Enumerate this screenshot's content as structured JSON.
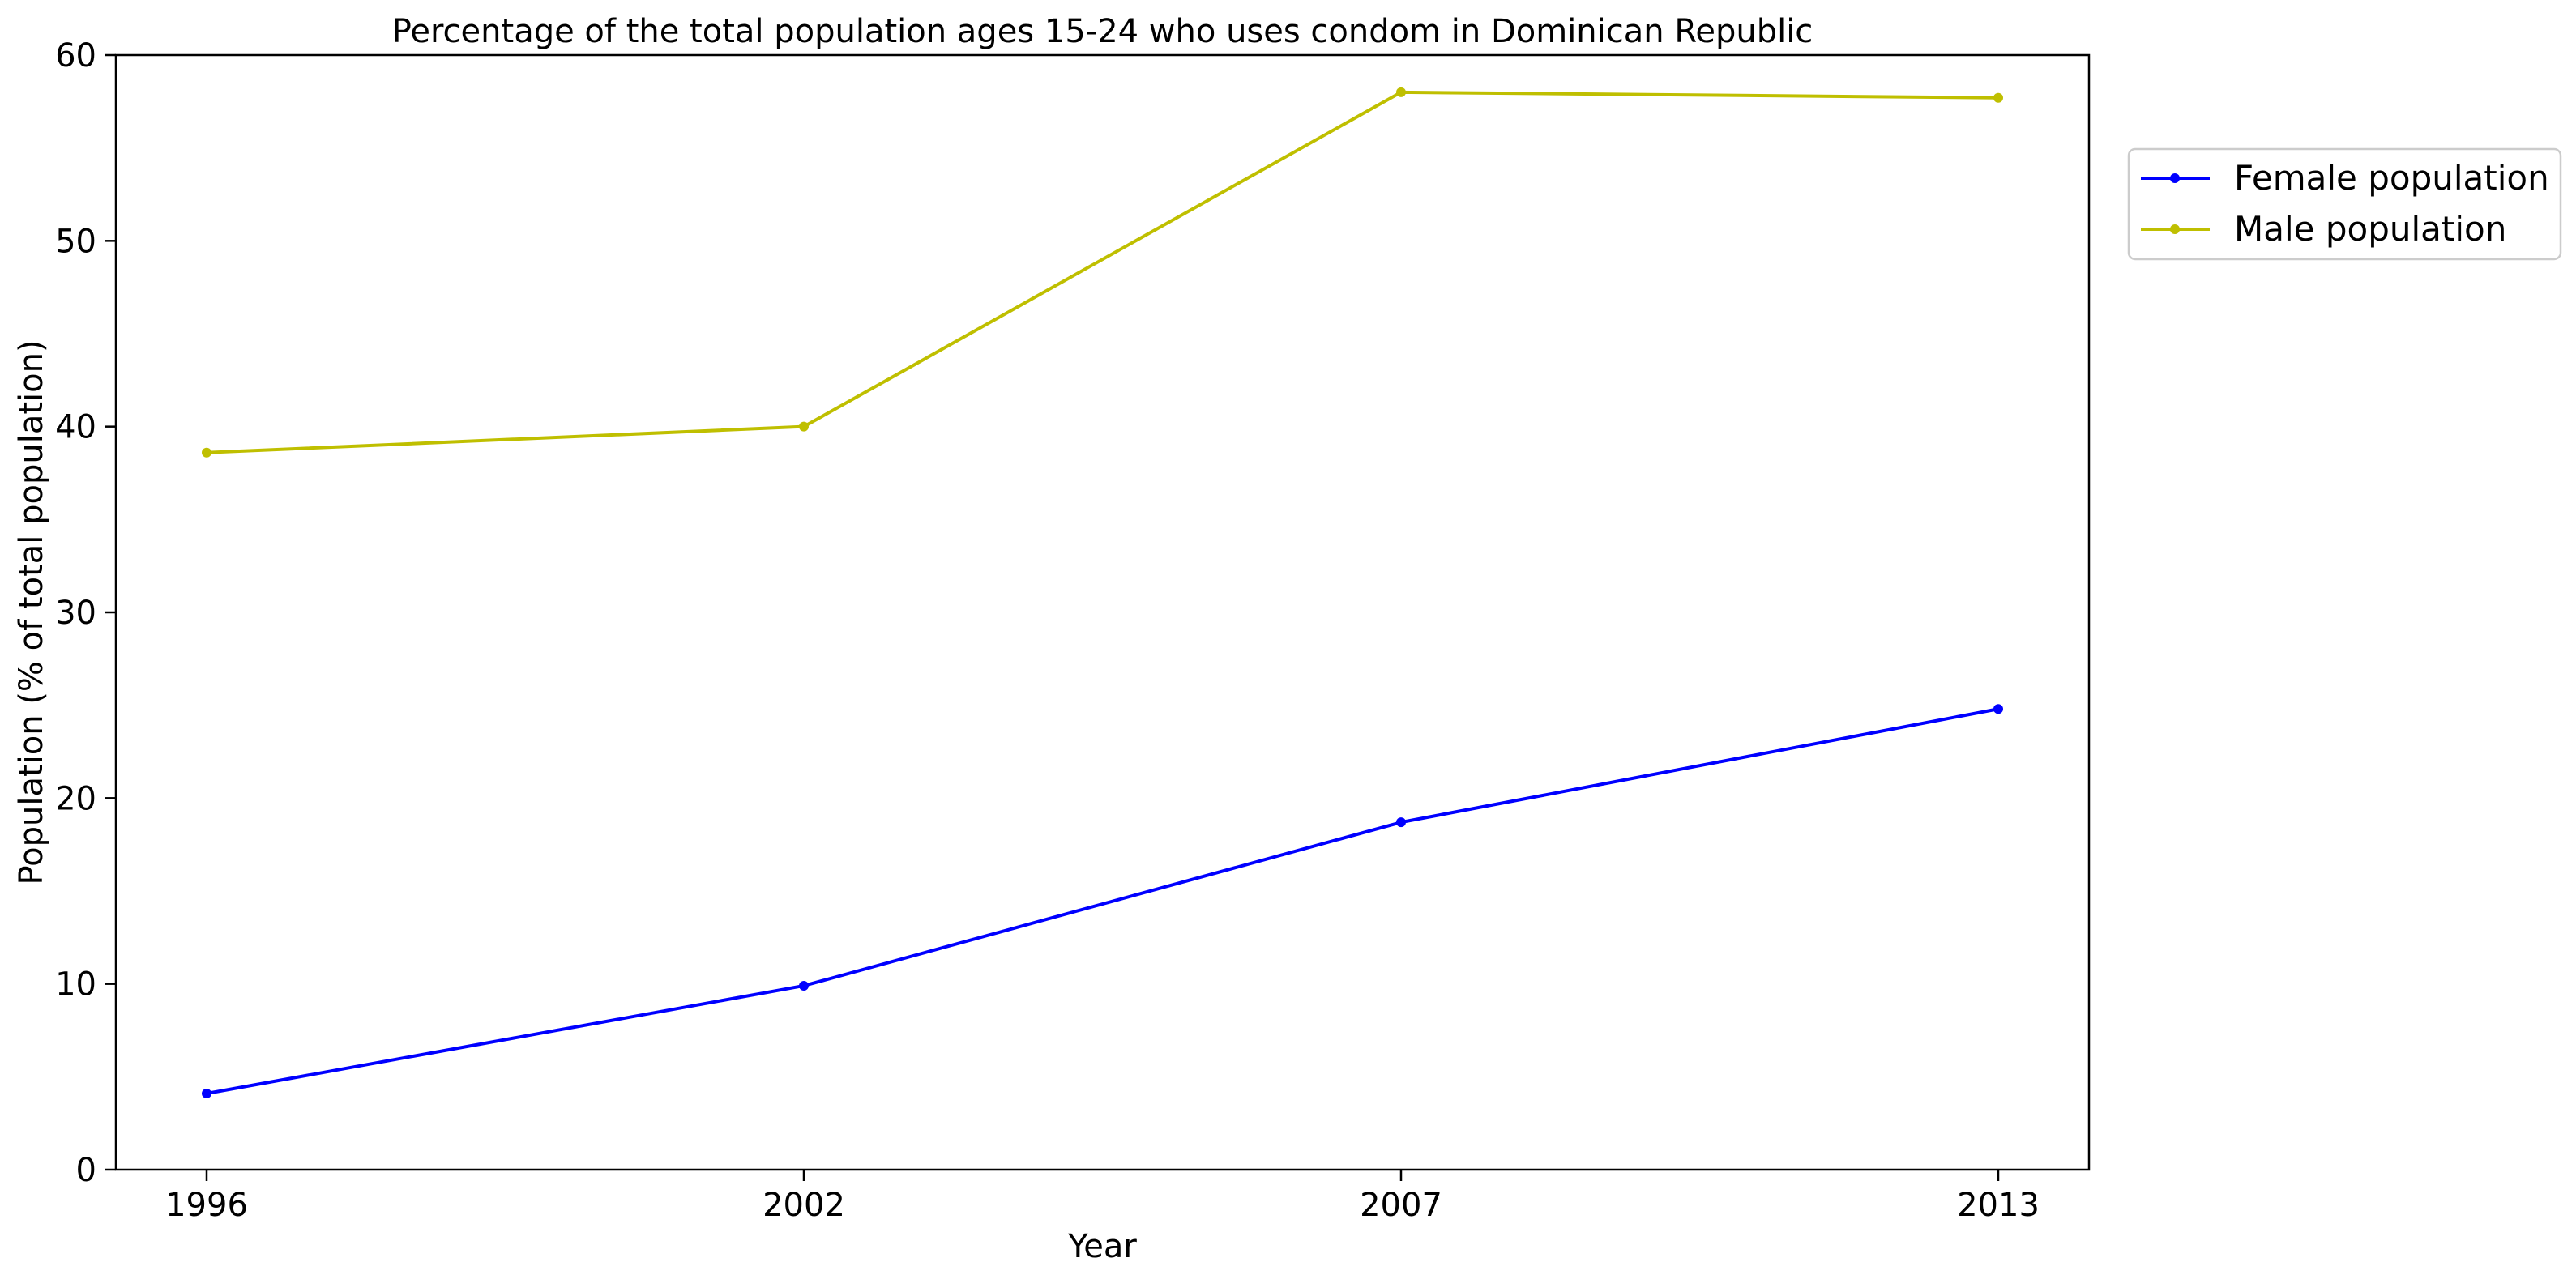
{
  "chart_data": {
    "type": "line",
    "title": "Percentage of the total population ages 15-24 who uses condom in Dominican Republic",
    "xlabel": "Year",
    "ylabel": "Population (% of total population)",
    "categories": [
      "1996",
      "2002",
      "2007",
      "2013"
    ],
    "ylim": [
      0,
      60
    ],
    "yticks": [
      "0",
      "10",
      "20",
      "30",
      "40",
      "50",
      "60"
    ],
    "grid": false,
    "legend_position": "right, outside plot, top",
    "series": [
      {
        "name": "Female population",
        "color": "#0000ff",
        "values": [
          4.1,
          9.9,
          18.7,
          24.8
        ]
      },
      {
        "name": "Male population",
        "color": "#bfbf00",
        "values": [
          38.6,
          40.0,
          58.0,
          57.7
        ]
      }
    ]
  }
}
